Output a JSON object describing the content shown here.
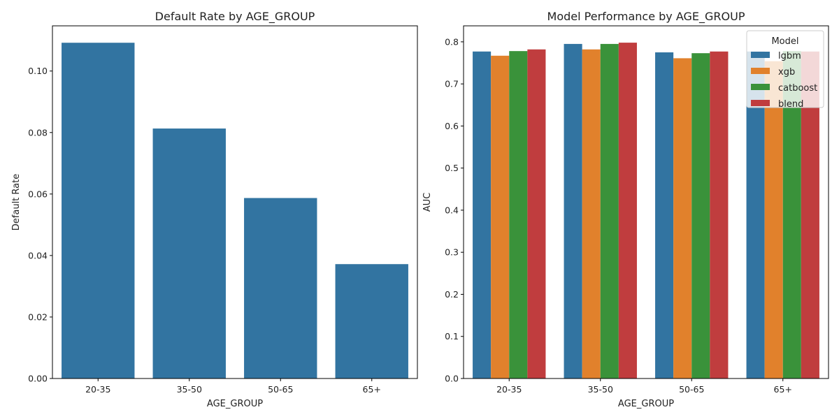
{
  "chart_data": [
    {
      "type": "bar",
      "title": "Default Rate by AGE_GROUP",
      "xlabel": "AGE_GROUP",
      "ylabel": "Default Rate",
      "categories": [
        "20-35",
        "35-50",
        "50-65",
        "65+"
      ],
      "values": [
        0.1092,
        0.0813,
        0.0587,
        0.0372
      ],
      "ylim": [
        0,
        0.1147
      ],
      "yticks": [
        0.0,
        0.02,
        0.04,
        0.06,
        0.08,
        0.1
      ],
      "ytick_labels": [
        "0.00",
        "0.02",
        "0.04",
        "0.06",
        "0.08",
        "0.10"
      ],
      "color": "#3274a1",
      "grid": false
    },
    {
      "type": "bar",
      "title": "Model Performance by AGE_GROUP",
      "xlabel": "AGE_GROUP",
      "ylabel": "AUC",
      "categories": [
        "20-35",
        "35-50",
        "50-65",
        "65+"
      ],
      "series": [
        {
          "name": "lgbm",
          "color": "#3274a1",
          "values": [
            0.777,
            0.795,
            0.775,
            0.777
          ]
        },
        {
          "name": "xgb",
          "color": "#e1812c",
          "values": [
            0.767,
            0.782,
            0.761,
            0.754
          ]
        },
        {
          "name": "catboost",
          "color": "#3a923a",
          "values": [
            0.778,
            0.795,
            0.773,
            0.778
          ]
        },
        {
          "name": "blend",
          "color": "#c03d3e",
          "values": [
            0.782,
            0.798,
            0.777,
            0.777
          ]
        }
      ],
      "ylim": [
        0,
        0.838
      ],
      "yticks": [
        0.0,
        0.1,
        0.2,
        0.3,
        0.4,
        0.5,
        0.6,
        0.7,
        0.8
      ],
      "ytick_labels": [
        "0.0",
        "0.1",
        "0.2",
        "0.3",
        "0.4",
        "0.5",
        "0.6",
        "0.7",
        "0.8"
      ],
      "legend": {
        "title": "Model",
        "placement": "top-right"
      },
      "grid": false
    }
  ]
}
